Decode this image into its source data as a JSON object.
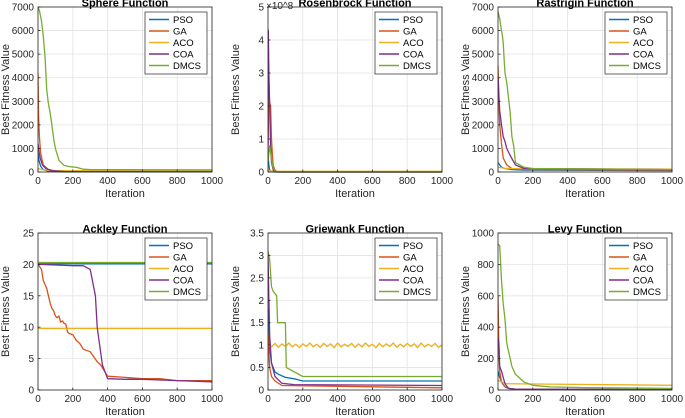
{
  "figure": {
    "series_colors": {
      "PSO": "#0072BD",
      "GA": "#D95319",
      "ACO": "#EDB120",
      "COA": "#7E2F8E",
      "DMCS": "#77AC30"
    }
  },
  "chart_data": [
    {
      "type": "line",
      "title": "Sphere Function",
      "xlabel": "Iteration",
      "ylabel": "Best Fitness Value",
      "xlim": [
        0,
        1000
      ],
      "ylim": [
        0,
        7000
      ],
      "xticks": [
        0,
        200,
        400,
        600,
        800,
        1000
      ],
      "yticks": [
        0,
        1000,
        2000,
        3000,
        4000,
        5000,
        6000,
        7000
      ],
      "exponent_label": "",
      "legend": [
        "PSO",
        "GA",
        "ACO",
        "COA",
        "DMCS"
      ],
      "legend_position": "top-right",
      "series": [
        {
          "name": "PSO",
          "x": [
            0,
            5,
            15,
            30,
            60,
            100,
            150,
            1000
          ],
          "y": [
            800,
            500,
            250,
            100,
            40,
            20,
            10,
            5
          ]
        },
        {
          "name": "GA",
          "x": [
            0,
            3,
            8,
            15,
            30,
            60,
            100,
            1000
          ],
          "y": [
            4200,
            2500,
            1500,
            800,
            300,
            100,
            50,
            30
          ]
        },
        {
          "name": "ACO",
          "x": [
            0,
            20,
            50,
            100,
            1000
          ],
          "y": [
            150,
            100,
            80,
            60,
            50
          ]
        },
        {
          "name": "COA",
          "x": [
            0,
            5,
            12,
            25,
            45,
            80,
            150,
            1000
          ],
          "y": [
            1200,
            900,
            600,
            300,
            150,
            60,
            20,
            10
          ]
        },
        {
          "name": "DMCS",
          "x": [
            0,
            10,
            20,
            30,
            40,
            50,
            60,
            70,
            80,
            90,
            100,
            120,
            150,
            180,
            220,
            260,
            300,
            1000
          ],
          "y": [
            7000,
            6800,
            6400,
            5800,
            4900,
            3500,
            2900,
            2500,
            2000,
            1400,
            1000,
            500,
            280,
            230,
            200,
            120,
            100,
            90
          ]
        }
      ]
    },
    {
      "type": "line",
      "title": "Rosenbrock Function",
      "xlabel": "Iteration",
      "ylabel": "Best Fitness Value",
      "xlim": [
        0,
        1000
      ],
      "ylim": [
        0,
        5
      ],
      "xticks": [
        0,
        200,
        400,
        600,
        800,
        1000
      ],
      "yticks": [
        0,
        1,
        2,
        3,
        4,
        5
      ],
      "exponent_label": "×10^8",
      "legend": [
        "PSO",
        "GA",
        "ACO",
        "COA",
        "DMCS"
      ],
      "legend_position": "top-right",
      "series": [
        {
          "name": "PSO",
          "x": [
            0,
            5,
            10,
            20,
            40,
            1000
          ],
          "y": [
            0.5,
            0.2,
            0.05,
            0.01,
            0,
            0
          ]
        },
        {
          "name": "GA",
          "x": [
            0,
            5,
            10,
            15,
            20,
            25,
            30,
            40,
            60,
            1000
          ],
          "y": [
            0.8,
            2.3,
            2.1,
            2.0,
            1.0,
            0.5,
            0.2,
            0.05,
            0,
            0
          ]
        },
        {
          "name": "ACO",
          "x": [
            0,
            20,
            1000
          ],
          "y": [
            0.05,
            0.02,
            0.02
          ]
        },
        {
          "name": "COA",
          "x": [
            0,
            2,
            5,
            10,
            15,
            20,
            30,
            50,
            1000
          ],
          "y": [
            0.5,
            4.3,
            3.0,
            2.0,
            0.8,
            0.3,
            0.05,
            0,
            0
          ]
        },
        {
          "name": "DMCS",
          "x": [
            0,
            10,
            20,
            30,
            50,
            1000
          ],
          "y": [
            0.3,
            0.8,
            0.4,
            0.1,
            0,
            0
          ]
        }
      ]
    },
    {
      "type": "line",
      "title": "Rastrigin Function",
      "xlabel": "Iteration",
      "ylabel": "Best Fitness Value",
      "xlim": [
        0,
        1000
      ],
      "ylim": [
        0,
        7000
      ],
      "xticks": [
        0,
        200,
        400,
        600,
        800,
        1000
      ],
      "yticks": [
        0,
        1000,
        2000,
        3000,
        4000,
        5000,
        6000,
        7000
      ],
      "exponent_label": "",
      "legend": [
        "PSO",
        "GA",
        "ACO",
        "COA",
        "DMCS"
      ],
      "legend_position": "top-right",
      "series": [
        {
          "name": "PSO",
          "x": [
            0,
            10,
            20,
            40,
            80,
            150,
            1000
          ],
          "y": [
            400,
            300,
            200,
            150,
            100,
            80,
            60
          ]
        },
        {
          "name": "GA",
          "x": [
            0,
            5,
            10,
            20,
            30,
            50,
            80,
            150,
            1000
          ],
          "y": [
            4500,
            3000,
            2000,
            1200,
            600,
            300,
            150,
            100,
            80
          ]
        },
        {
          "name": "ACO",
          "x": [
            0,
            50,
            1000
          ],
          "y": [
            200,
            150,
            120
          ]
        },
        {
          "name": "COA",
          "x": [
            0,
            10,
            20,
            30,
            40,
            50,
            70,
            100,
            150,
            1000
          ],
          "y": [
            4000,
            2600,
            2000,
            1500,
            1300,
            1000,
            700,
            300,
            150,
            100
          ]
        },
        {
          "name": "DMCS",
          "x": [
            0,
            10,
            20,
            25,
            30,
            35,
            40,
            50,
            60,
            70,
            80,
            90,
            100,
            150,
            200,
            1000
          ],
          "y": [
            6800,
            6500,
            6000,
            5800,
            5500,
            4800,
            4200,
            3800,
            3200,
            2500,
            1500,
            1100,
            400,
            200,
            150,
            100
          ]
        }
      ]
    },
    {
      "type": "line",
      "title": "Ackley Function",
      "xlabel": "Iteration",
      "ylabel": "Best Fitness Value",
      "xlim": [
        0,
        1000
      ],
      "ylim": [
        0,
        25
      ],
      "xticks": [
        0,
        200,
        400,
        600,
        800,
        1000
      ],
      "yticks": [
        0,
        5,
        10,
        15,
        20,
        25
      ],
      "exponent_label": "",
      "legend": [
        "PSO",
        "GA",
        "ACO",
        "COA",
        "DMCS"
      ],
      "legend_position": "top-right",
      "series": [
        {
          "name": "PSO",
          "x": [
            0,
            1000
          ],
          "y": [
            20.1,
            20.1
          ]
        },
        {
          "name": "GA",
          "x": [
            0,
            20,
            30,
            40,
            50,
            60,
            70,
            80,
            90,
            100,
            110,
            120,
            130,
            140,
            150,
            160,
            170,
            180,
            200,
            220,
            240,
            260,
            300,
            340,
            360,
            400,
            500,
            600,
            700,
            800,
            900,
            1000
          ],
          "y": [
            20,
            19.2,
            17.5,
            16.8,
            16.2,
            15,
            13.8,
            13,
            12.6,
            11.8,
            11.5,
            11.8,
            10.8,
            11,
            10.6,
            10.5,
            9.2,
            9.0,
            8.8,
            7.9,
            7.4,
            6.5,
            6.1,
            4.5,
            4.0,
            2.2,
            2.0,
            1.8,
            1.8,
            1.5,
            1.5,
            1.5
          ]
        },
        {
          "name": "ACO",
          "x": [
            0,
            1000
          ],
          "y": [
            9.8,
            9.8
          ]
        },
        {
          "name": "COA",
          "x": [
            0,
            100,
            200,
            260,
            300,
            330,
            340,
            350,
            370,
            400,
            500,
            600,
            700,
            800,
            900,
            1000
          ],
          "y": [
            20,
            19.9,
            19.8,
            19.8,
            19.2,
            15,
            10,
            8,
            4,
            1.8,
            1.7,
            1.7,
            1.6,
            1.5,
            1.4,
            1.3
          ]
        },
        {
          "name": "DMCS",
          "x": [
            0,
            1000
          ],
          "y": [
            20.3,
            20.3
          ]
        }
      ]
    },
    {
      "type": "line",
      "title": "Griewank Function",
      "xlabel": "Iteration",
      "ylabel": "Best Fitness Value",
      "xlim": [
        0,
        1000
      ],
      "ylim": [
        0,
        3.5
      ],
      "xticks": [
        0,
        200,
        400,
        600,
        800,
        1000
      ],
      "yticks": [
        0,
        0.5,
        1,
        1.5,
        2,
        2.5,
        3,
        3.5
      ],
      "exponent_label": "",
      "legend": [
        "PSO",
        "GA",
        "ACO",
        "COA",
        "DMCS"
      ],
      "legend_position": "top-right",
      "series": [
        {
          "name": "PSO",
          "x": [
            0,
            5,
            10,
            20,
            40,
            60,
            100,
            150,
            200,
            1000
          ],
          "y": [
            1.8,
            1.2,
            0.9,
            0.6,
            0.4,
            0.35,
            0.28,
            0.25,
            0.2,
            0.2
          ]
        },
        {
          "name": "GA",
          "x": [
            0,
            5,
            10,
            20,
            40,
            80,
            1000
          ],
          "y": [
            1.3,
            0.8,
            0.5,
            0.3,
            0.2,
            0.1,
            0.05
          ]
        },
        {
          "name": "ACO",
          "x": [
            0,
            20,
            40,
            60,
            80,
            100,
            120,
            140,
            160,
            180,
            200,
            220,
            240,
            260,
            280,
            300,
            320,
            340,
            360,
            380,
            400,
            420,
            440,
            460,
            480,
            500,
            520,
            540,
            560,
            580,
            600,
            620,
            640,
            660,
            680,
            700,
            720,
            740,
            760,
            780,
            800,
            820,
            840,
            860,
            880,
            900,
            920,
            940,
            960,
            980,
            1000
          ],
          "y": [
            1.0,
            0.96,
            1.04,
            0.95,
            1.03,
            0.97,
            1.05,
            0.96,
            1.02,
            0.94,
            1.03,
            0.97,
            1.05,
            0.96,
            1.02,
            0.95,
            1.04,
            0.97,
            1.03,
            0.94,
            1.05,
            0.96,
            1.02,
            0.97,
            1.04,
            0.95,
            1.03,
            0.96,
            1.05,
            0.97,
            1.02,
            0.94,
            1.04,
            0.96,
            1.03,
            0.97,
            1.05,
            0.95,
            1.02,
            0.96,
            1.04,
            0.97,
            1.03,
            0.94,
            1.05,
            0.96,
            1.02,
            0.97,
            1.04,
            0.95,
            1.0
          ]
        },
        {
          "name": "COA",
          "x": [
            0,
            5,
            10,
            20,
            40,
            80,
            150,
            1000
          ],
          "y": [
            3.0,
            2.0,
            1.2,
            0.6,
            0.3,
            0.15,
            0.12,
            0.1
          ]
        },
        {
          "name": "DMCS",
          "x": [
            0,
            10,
            20,
            30,
            50,
            55,
            100,
            105,
            200,
            1000
          ],
          "y": [
            3.1,
            2.9,
            2.3,
            2.2,
            2.1,
            1.5,
            1.5,
            0.5,
            0.3,
            0.3
          ]
        }
      ]
    },
    {
      "type": "line",
      "title": "Levy Function",
      "xlabel": "Iteration",
      "ylabel": "Best Fitness Value",
      "xlim": [
        0,
        1000
      ],
      "ylim": [
        0,
        1000
      ],
      "xticks": [
        0,
        200,
        400,
        600,
        800,
        1000
      ],
      "yticks": [
        0,
        200,
        400,
        600,
        800,
        1000
      ],
      "exponent_label": "",
      "legend": [
        "PSO",
        "GA",
        "ACO",
        "COA",
        "DMCS"
      ],
      "legend_position": "top-right",
      "series": [
        {
          "name": "PSO",
          "x": [
            0,
            5,
            10,
            20,
            40,
            60,
            100,
            1000
          ],
          "y": [
            120,
            100,
            80,
            50,
            20,
            10,
            5,
            2
          ]
        },
        {
          "name": "GA",
          "x": [
            0,
            3,
            6,
            10,
            20,
            40,
            80,
            1000
          ],
          "y": [
            600,
            400,
            250,
            120,
            50,
            20,
            5,
            2
          ]
        },
        {
          "name": "ACO",
          "x": [
            0,
            50,
            1000
          ],
          "y": [
            60,
            40,
            30
          ]
        },
        {
          "name": "COA",
          "x": [
            0,
            5,
            10,
            20,
            30,
            40,
            60,
            100,
            1000
          ],
          "y": [
            330,
            300,
            150,
            120,
            80,
            40,
            10,
            5,
            2
          ]
        },
        {
          "name": "DMCS",
          "x": [
            0,
            10,
            20,
            30,
            40,
            50,
            60,
            70,
            80,
            100,
            120,
            150,
            200,
            300,
            500,
            1000
          ],
          "y": [
            930,
            920,
            700,
            550,
            450,
            300,
            250,
            200,
            150,
            100,
            80,
            50,
            30,
            20,
            15,
            10
          ]
        }
      ]
    }
  ]
}
